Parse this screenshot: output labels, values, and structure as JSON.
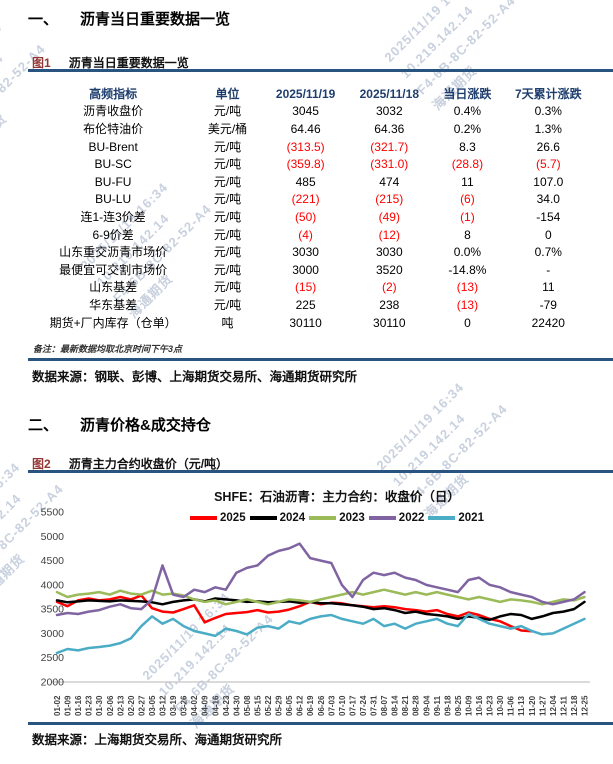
{
  "watermark": {
    "lines": [
      "2025/11/19 16:34",
      "10.219.142.14",
      "F4-6B-8C-82-52-A4",
      "海通期货"
    ]
  },
  "section1": {
    "number": "一、",
    "title": "沥青当日重要数据一览"
  },
  "figure1": {
    "label": "图1",
    "title": "沥青当日重要数据一览"
  },
  "table": {
    "headers": [
      "高频指标",
      "单位",
      "2025/11/19",
      "2025/11/18",
      "当日涨跌",
      "7天累计涨跌"
    ],
    "rows": [
      [
        "沥青收盘价",
        "元/吨",
        "3045",
        "3032",
        "0.4%",
        "0.3%"
      ],
      [
        "布伦特油价",
        "美元/桶",
        "64.46",
        "64.36",
        "0.2%",
        "1.3%"
      ],
      [
        "BU-Brent",
        "元/吨",
        "(313.5)",
        "(321.7)",
        "8.3",
        "26.6"
      ],
      [
        "BU-SC",
        "元/吨",
        "(359.8)",
        "(331.0)",
        "(28.8)",
        "(5.7)"
      ],
      [
        "BU-FU",
        "元/吨",
        "485",
        "474",
        "11",
        "107.0"
      ],
      [
        "BU-LU",
        "元/吨",
        "(221)",
        "(215)",
        "(6)",
        "34.0"
      ],
      [
        "连1-连3价差",
        "元/吨",
        "(50)",
        "(49)",
        "(1)",
        "-154"
      ],
      [
        "6-9价差",
        "元/吨",
        "(4)",
        "(12)",
        "8",
        "0"
      ],
      [
        "山东重交沥青市场价",
        "元/吨",
        "3030",
        "3030",
        "0.0%",
        "0.7%"
      ],
      [
        "最便宜可交割市场价",
        "元/吨",
        "3000",
        "3520",
        "-14.8%",
        "-"
      ],
      [
        "山东基差",
        "元/吨",
        "(15)",
        "(2)",
        "(13)",
        "11"
      ],
      [
        "华东基差",
        "元/吨",
        "225",
        "238",
        "(13)",
        "-79"
      ],
      [
        "期货+厂内库存（仓单）",
        "吨",
        "30110",
        "30110",
        "0",
        "22420"
      ]
    ],
    "note": "备注：最新数据均取北京时间下午3点",
    "source": "数据来源：钢联、彭博、上海期货交易所、海通期货研究所"
  },
  "section2": {
    "number": "二、",
    "title": "沥青价格&成交持仓"
  },
  "figure2": {
    "label": "图2",
    "title": "沥青主力合约收盘价（元/吨）",
    "source": "数据来源：上海期货交易所、海通期货研究所"
  },
  "chart_data": {
    "type": "line",
    "title": "SHFE：石油沥青：主力合约：收盘价（日）",
    "xlabel": "",
    "ylabel": "元/吨",
    "ylim": [
      2000,
      5500
    ],
    "y_ticks": [
      5500,
      5000,
      4500,
      4000,
      3500,
      3000,
      2500,
      2000
    ],
    "grid": false,
    "legend_position": "top",
    "x": [
      "01-02",
      "01-09",
      "01-16",
      "01-23",
      "01-30",
      "02-06",
      "02-13",
      "02-20",
      "02-27",
      "03-05",
      "03-12",
      "03-19",
      "03-26",
      "04-02",
      "04-09",
      "04-16",
      "04-23",
      "04-30",
      "05-08",
      "05-15",
      "05-22",
      "05-29",
      "06-05",
      "06-12",
      "06-19",
      "06-26",
      "07-03",
      "07-10",
      "07-17",
      "07-24",
      "07-31",
      "08-07",
      "08-14",
      "08-21",
      "08-28",
      "09-04",
      "09-11",
      "09-18",
      "09-25",
      "10-09",
      "10-16",
      "10-23",
      "10-30",
      "11-06",
      "11-13",
      "11-20",
      "11-27",
      "12-04",
      "12-11",
      "12-18",
      "12-25"
    ],
    "series": [
      {
        "name": "2025",
        "color": "#FF0000",
        "values": [
          3650,
          3560,
          3680,
          3720,
          3680,
          3700,
          3750,
          3700,
          3780,
          3520,
          3450,
          3430,
          3500,
          3580,
          3230,
          3320,
          3400,
          3420,
          3440,
          3480,
          3430,
          3450,
          3490,
          3560,
          3650,
          3600,
          3630,
          3620,
          3580,
          3560,
          3540,
          3560,
          3540,
          3500,
          3480,
          3450,
          3480,
          3400,
          3350,
          3430,
          3380,
          3300,
          3250,
          3150,
          3060,
          3045,
          null,
          null,
          null,
          null,
          null
        ]
      },
      {
        "name": "2024",
        "color": "#000000",
        "values": [
          3680,
          3640,
          3660,
          3680,
          3670,
          3660,
          3680,
          3670,
          3660,
          3640,
          3600,
          3650,
          3680,
          3700,
          3660,
          3720,
          3700,
          3680,
          3650,
          3660,
          3640,
          3650,
          3660,
          3630,
          3650,
          3620,
          3620,
          3600,
          3580,
          3550,
          3500,
          3520,
          3480,
          3420,
          3450,
          3400,
          3380,
          3350,
          3300,
          3350,
          3320,
          3280,
          3350,
          3400,
          3380,
          3300,
          3350,
          3420,
          3450,
          3500,
          3650
        ]
      },
      {
        "name": "2023",
        "color": "#9BBB59",
        "values": [
          3850,
          3750,
          3800,
          3820,
          3850,
          3800,
          3880,
          3820,
          3800,
          3880,
          3800,
          3820,
          3780,
          3700,
          3650,
          3680,
          3600,
          3650,
          3700,
          3650,
          3600,
          3650,
          3700,
          3680,
          3650,
          3700,
          3750,
          3800,
          3850,
          3800,
          3850,
          3900,
          3850,
          3800,
          3850,
          3800,
          3850,
          3800,
          3750,
          3700,
          3750,
          3700,
          3650,
          3700,
          3680,
          3650,
          3600,
          3650,
          3700,
          3680,
          3750
        ]
      },
      {
        "name": "2022",
        "color": "#8064A2",
        "values": [
          3380,
          3420,
          3400,
          3450,
          3480,
          3550,
          3600,
          3520,
          3500,
          3700,
          4400,
          3800,
          3750,
          3900,
          3850,
          3950,
          3900,
          4250,
          4350,
          4400,
          4600,
          4700,
          4750,
          4850,
          4550,
          4500,
          4450,
          4000,
          3750,
          4100,
          4250,
          4200,
          4250,
          4150,
          4100,
          4000,
          3950,
          3900,
          3850,
          4100,
          4150,
          4000,
          3950,
          3850,
          3800,
          3750,
          3650,
          3600,
          3650,
          3700,
          3850
        ]
      },
      {
        "name": "2021",
        "color": "#4BACC6",
        "values": [
          2600,
          2680,
          2650,
          2700,
          2720,
          2750,
          2800,
          2900,
          3150,
          3350,
          3200,
          3300,
          3150,
          3050,
          3000,
          2950,
          3100,
          3050,
          2980,
          3120,
          3150,
          3100,
          3250,
          3200,
          3300,
          3350,
          3380,
          3300,
          3250,
          3200,
          3300,
          3150,
          3200,
          3100,
          3200,
          3250,
          3300,
          3200,
          3150,
          3400,
          3300,
          3200,
          3150,
          3100,
          3150,
          3050,
          2980,
          3000,
          3100,
          3200,
          3300
        ]
      }
    ]
  },
  "colors": {
    "rule": "#2A5480",
    "header_text": "#1F3E6E",
    "negative": "#FF0000",
    "figure_label": "#953735"
  }
}
